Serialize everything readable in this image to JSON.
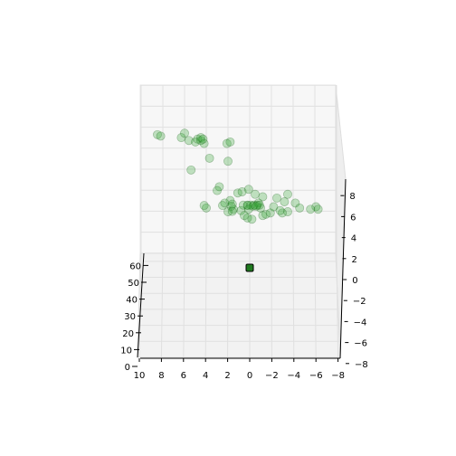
{
  "chart_data": {
    "type": "scatter",
    "projection": "3d",
    "title": "",
    "xlabel": "",
    "ylabel": "",
    "zlabel": "",
    "grid": true,
    "x_axis": {
      "ticks": [
        10,
        8,
        6,
        4,
        2,
        0,
        -2,
        -4,
        -6,
        -8
      ],
      "range": [
        10,
        -8
      ]
    },
    "y_axis": {
      "ticks": [
        0,
        10,
        20,
        30,
        40,
        50,
        60
      ],
      "range": [
        0,
        65
      ]
    },
    "z_axis": {
      "ticks": [
        -8,
        -6,
        -4,
        -2,
        0,
        2,
        4,
        6,
        8
      ],
      "range": [
        -8,
        9
      ]
    },
    "colors": {
      "marker": "#2ca02c",
      "marker_edge": "#1a5e1a",
      "highlight": "#1f7a1f",
      "pane": "#f2f2f2",
      "grid": "#e0e0e0"
    },
    "series": [
      {
        "points": [
          [
            8.5,
            62,
            6.2
          ],
          [
            8.2,
            62,
            6.1
          ],
          [
            6.3,
            62,
            6.0
          ],
          [
            6.0,
            62,
            6.3
          ],
          [
            5.6,
            62,
            5.8
          ],
          [
            5.0,
            62,
            5.7
          ],
          [
            4.8,
            62,
            5.9
          ],
          [
            4.5,
            62,
            5.8
          ],
          [
            4.5,
            62,
            6.0
          ],
          [
            4.2,
            62,
            5.6
          ],
          [
            4.3,
            62,
            5.9
          ],
          [
            2.1,
            62,
            5.6
          ],
          [
            1.8,
            62,
            5.7
          ],
          [
            2.0,
            62,
            4.4
          ],
          [
            5.4,
            62,
            3.8
          ],
          [
            3.7,
            62,
            4.6
          ],
          [
            2.8,
            40,
            3.1
          ],
          [
            3.0,
            40,
            2.8
          ],
          [
            1.1,
            40,
            2.6
          ],
          [
            0.7,
            40,
            2.7
          ],
          [
            0.1,
            40,
            2.9
          ],
          [
            -0.5,
            40,
            2.5
          ],
          [
            -1.2,
            40,
            2.3
          ],
          [
            -2.5,
            40,
            2.2
          ],
          [
            -3.5,
            40,
            2.5
          ],
          [
            -3.2,
            40,
            1.9
          ],
          [
            -4.2,
            40,
            1.8
          ],
          [
            -6.1,
            40,
            1.5
          ],
          [
            -6.3,
            40,
            1.3
          ],
          [
            -2.2,
            40,
            1.5
          ],
          [
            -4.6,
            40,
            1.4
          ],
          [
            -5.6,
            40,
            1.3
          ],
          [
            -3.5,
            40,
            1.1
          ],
          [
            -3.0,
            40,
            1.0
          ],
          [
            -2.8,
            40,
            1.2
          ],
          [
            -1.0,
            40,
            1.4
          ],
          [
            -0.8,
            40,
            1.8
          ],
          [
            0.2,
            40,
            1.6
          ],
          [
            1.5,
            40,
            1.3
          ],
          [
            2.0,
            40,
            1.1
          ],
          [
            2.5,
            40,
            1.6
          ],
          [
            4.0,
            40,
            1.4
          ],
          [
            4.2,
            40,
            1.6
          ],
          [
            2.3,
            40,
            1.8
          ],
          [
            1.8,
            40,
            2.0
          ],
          [
            0.8,
            40,
            1.2
          ],
          [
            0.5,
            40,
            0.8
          ],
          [
            0.2,
            40,
            0.6
          ],
          [
            -0.2,
            40,
            0.5
          ],
          [
            -1.2,
            40,
            0.8
          ],
          [
            -1.5,
            40,
            0.9
          ],
          [
            -1.9,
            40,
            1.0
          ],
          [
            0.6,
            20,
            1.9
          ],
          [
            0.2,
            20,
            1.9
          ],
          [
            -0.1,
            20,
            1.9
          ],
          [
            -0.4,
            20,
            1.9
          ],
          [
            -0.7,
            20,
            1.9
          ],
          [
            -0.9,
            20,
            1.9
          ],
          [
            1.6,
            20,
            2.0
          ],
          [
            1.7,
            20,
            1.8
          ],
          [
            1.6,
            20,
            1.3
          ],
          [
            0.1,
            20,
            1.5
          ],
          [
            -0.3,
            20,
            1.8
          ],
          [
            -0.6,
            20,
            1.8
          ]
        ]
      }
    ],
    "highlight_point": [
      0.0,
      10,
      0.6
    ]
  }
}
